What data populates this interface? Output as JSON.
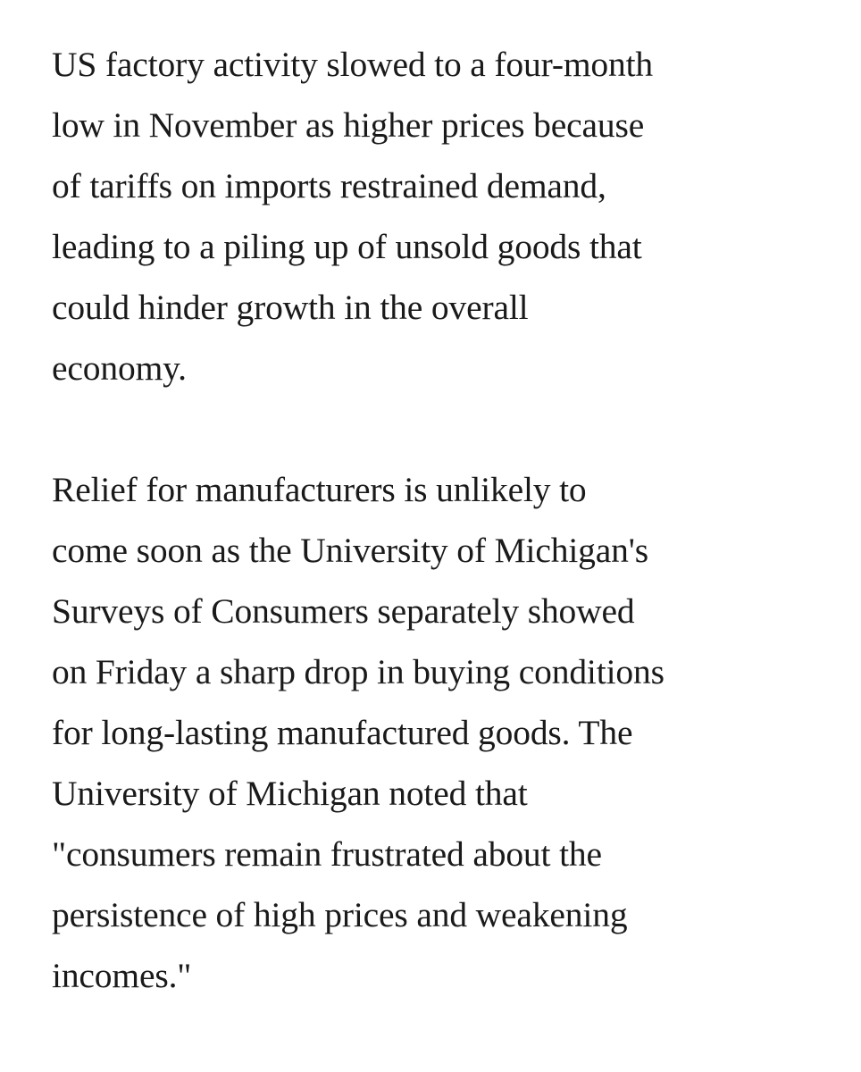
{
  "article": {
    "paragraphs": [
      {
        "lines": [
          "US factory activity slowed to a four-month",
          "low in November as higher prices because",
          "of tariffs on imports restrained demand,",
          "leading to a piling up of unsold goods that",
          "could hinder growth in the overall",
          "economy."
        ]
      },
      {
        "lines": [
          "Relief for manufacturers is unlikely to",
          "come soon as the University of Michigan's",
          "Surveys of Consumers separately showed",
          "on Friday a sharp drop in buying conditions",
          "for long-lasting manufactured goods. The",
          "University of Michigan noted that",
          "\"consumers remain frustrated about the",
          "persistence of high prices and weakening",
          "incomes.\""
        ]
      }
    ]
  }
}
